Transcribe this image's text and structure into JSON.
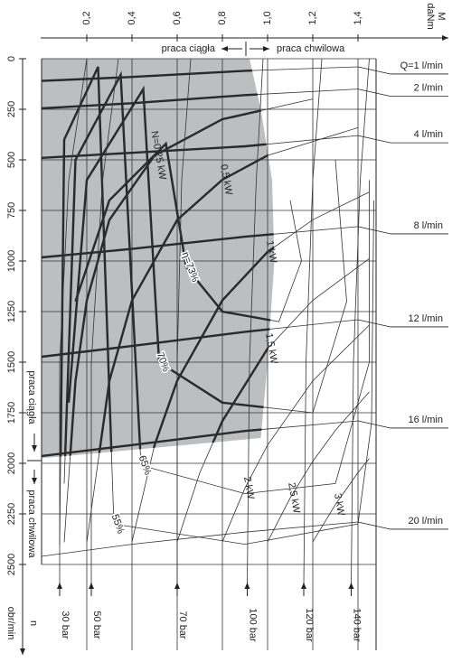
{
  "chart_data": {
    "type": "line",
    "x_label": "M",
    "x_unit": "daNm",
    "y_label": "n",
    "y_unit": "obr/min",
    "xlim": [
      0,
      1.48
    ],
    "ylim": [
      0,
      2500
    ],
    "xticks": [
      {
        "value": 0.2,
        "label": "0,2"
      },
      {
        "value": 0.4,
        "label": "0,4"
      },
      {
        "value": 0.6,
        "label": "0,6"
      },
      {
        "value": 0.8,
        "label": "0,8"
      },
      {
        "value": 1.0,
        "label": "1,0"
      },
      {
        "value": 1.2,
        "label": "1,2"
      },
      {
        "value": 1.4,
        "label": "1,4"
      }
    ],
    "yticks": [
      0,
      250,
      500,
      750,
      1000,
      1250,
      1500,
      1750,
      2000,
      2250,
      2500
    ],
    "grid": true,
    "region": {
      "color": "#bdbec0",
      "x": [
        0,
        0.92,
        0.97,
        1.02,
        1.03,
        1.0,
        0.97,
        0
      ],
      "values": [
        0,
        0,
        250,
        600,
        1000,
        1500,
        1875,
        1975
      ]
    },
    "annotations": {
      "top_left": "praca ciągła",
      "top_right": "praca chwilowa",
      "side_left": "praca ciągła",
      "side_right": "praca chwilowa"
    },
    "flow_series": [
      {
        "name": "Q=1 l/min",
        "x": [
          0,
          0.4,
          0.9,
          1.4
        ],
        "values": [
          110,
          90,
          60,
          40
        ]
      },
      {
        "name": "2 l/min",
        "x": [
          0,
          0.4,
          0.9,
          1.4
        ],
        "values": [
          245,
          220,
          180,
          150
        ]
      },
      {
        "name": "4 l/min",
        "x": [
          0,
          0.4,
          0.9,
          1.4
        ],
        "values": [
          490,
          465,
          433,
          380
        ]
      },
      {
        "name": "8 l/min",
        "x": [
          0,
          0.4,
          0.9,
          1.4
        ],
        "values": [
          982,
          940,
          880,
          830
        ]
      },
      {
        "name": "12 l/min",
        "x": [
          0,
          0.4,
          0.9,
          1.4
        ],
        "values": [
          1473,
          1420,
          1350,
          1290
        ]
      },
      {
        "name": "16 l/min",
        "x": [
          0,
          0.4,
          0.9,
          1.4
        ],
        "values": [
          1964,
          1910,
          1840,
          1790
        ]
      },
      {
        "name": "20 l/min",
        "x": [
          0,
          0.4,
          0.9,
          1.4
        ],
        "values": [
          2460,
          2400,
          2340,
          2290
        ]
      }
    ],
    "pressure_series": [
      {
        "name": "30 bar",
        "x": [
          0.08,
          0.08,
          0.12,
          0.2
        ],
        "values": [
          2600,
          1500,
          600,
          0
        ]
      },
      {
        "name": "50 bar",
        "x": [
          0.22,
          0.22,
          0.27,
          0.34
        ],
        "values": [
          2600,
          1500,
          600,
          0
        ]
      },
      {
        "name": "70 bar",
        "x": [
          0.6,
          0.6,
          0.62,
          0.66
        ],
        "values": [
          2600,
          1500,
          600,
          0
        ]
      },
      {
        "name": "100 bar",
        "x": [
          0.91,
          0.92,
          0.95,
          0.98
        ],
        "values": [
          2600,
          1500,
          600,
          0
        ]
      },
      {
        "name": "120 bar",
        "x": [
          1.16,
          1.17,
          1.2,
          1.24
        ],
        "values": [
          2600,
          1500,
          600,
          0
        ]
      },
      {
        "name": "140 bar",
        "x": [
          1.37,
          1.38,
          1.41,
          1.45
        ],
        "values": [
          2600,
          1500,
          600,
          0
        ]
      }
    ],
    "power_series": [
      {
        "name": "N=0,25 kW",
        "x": [
          0.1,
          0.15,
          0.2,
          0.3,
          0.5,
          0.8,
          1.2
        ],
        "values": [
          2390,
          1593,
          1195,
          797,
          478,
          299,
          199
        ]
      },
      {
        "name": "0,5 kW",
        "x": [
          0.2,
          0.3,
          0.4,
          0.6,
          0.8,
          1.0,
          1.4
        ],
        "values": [
          2390,
          1593,
          1195,
          797,
          598,
          478,
          341
        ]
      },
      {
        "name": "1 kW",
        "x": [
          0.4,
          0.5,
          0.6,
          0.8,
          1.0,
          1.2,
          1.45
        ],
        "values": [
          2388,
          1910,
          1592,
          1194,
          955,
          796,
          659
        ]
      },
      {
        "name": "1,5 kW",
        "x": [
          0.6,
          0.7,
          0.8,
          1.0,
          1.2,
          1.45
        ],
        "values": [
          2388,
          2047,
          1791,
          1433,
          1194,
          988
        ]
      },
      {
        "name": "2 kW",
        "x": [
          0.8,
          0.9,
          1.0,
          1.2,
          1.45
        ],
        "values": [
          2388,
          2122,
          1910,
          1592,
          1317
        ]
      },
      {
        "name": "2,5 kW",
        "x": [
          1.0,
          1.1,
          1.2,
          1.3,
          1.45
        ],
        "values": [
          2388,
          2171,
          1990,
          1837,
          1647
        ]
      },
      {
        "name": "3 kW",
        "x": [
          1.2,
          1.3,
          1.4,
          1.45
        ],
        "values": [
          2388,
          2204,
          2046,
          1976
        ]
      }
    ],
    "efficiency_series": [
      {
        "name": "η=73%",
        "x": [
          0.15,
          0.3,
          0.55,
          0.64,
          0.8,
          1.05,
          1.15,
          1.1
        ],
        "values": [
          1200,
          700,
          420,
          1030,
          1250,
          1300,
          1000,
          700
        ]
      },
      {
        "name": "70%",
        "x": [
          0.12,
          0.2,
          0.45,
          0.52,
          0.8,
          1.2,
          1.35,
          1.3
        ],
        "values": [
          1700,
          600,
          150,
          1500,
          1700,
          1750,
          1200,
          500
        ]
      },
      {
        "name": "65%",
        "x": [
          0.1,
          0.15,
          0.35,
          0.44,
          0.9,
          1.3,
          1.45,
          1.45
        ],
        "values": [
          2100,
          500,
          80,
          2010,
          2150,
          2100,
          1500,
          600
        ]
      },
      {
        "name": "55%",
        "x": [
          0.08,
          0.1,
          0.25,
          0.32,
          0.9,
          1.4,
          1.46,
          1.47
        ],
        "values": [
          2400,
          400,
          40,
          2300,
          2400,
          2300,
          1800,
          700
        ]
      }
    ]
  }
}
